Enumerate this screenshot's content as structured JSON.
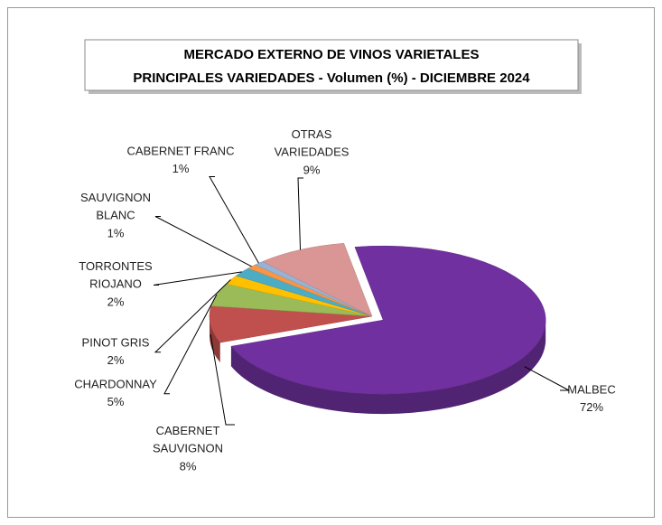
{
  "chart_data": {
    "type": "pie3d",
    "title": "MERCADO EXTERNO DE VINOS VARIETALES",
    "subtitle": "PRINCIPALES VARIEDADES - Volumen (%) - DICIEMBRE 2024",
    "categories": [
      "MALBEC",
      "CABERNET SAUVIGNON",
      "CHARDONNAY",
      "PINOT GRIS",
      "TORRONTES RIOJANO",
      "SAUVIGNON BLANC",
      "CABERNET FRANC",
      "OTRAS VARIEDADES"
    ],
    "values": [
      72,
      8,
      5,
      2,
      2,
      1,
      1,
      9
    ],
    "value_labels": [
      "72%",
      "8%",
      "5%",
      "2%",
      "2%",
      "1%",
      "1%",
      "9%"
    ],
    "colors": [
      "#7030a0",
      "#c0504d",
      "#9bbb59",
      "#ffc000",
      "#4bacc6",
      "#f79646",
      "#95b3d7",
      "#d99694"
    ]
  }
}
